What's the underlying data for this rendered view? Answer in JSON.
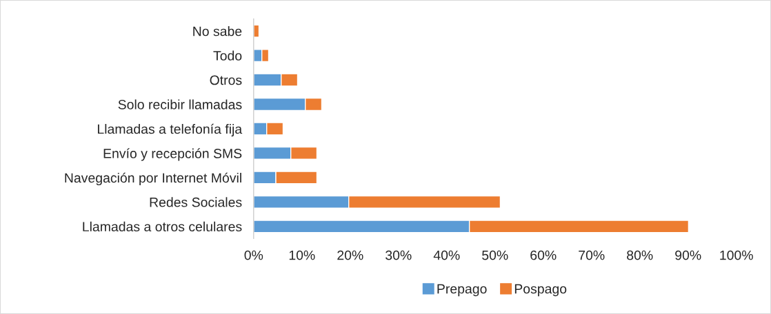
{
  "chart_data": {
    "type": "bar",
    "orientation": "horizontal",
    "stacked": true,
    "categories": [
      "No sabe",
      "Todo",
      "Otros",
      "Solo recibir llamadas",
      "Llamadas a telefonía fija",
      "Envío y recepción SMS",
      "Navegación por Internet Móvil",
      "Redes Sociales",
      "Llamadas a otros celulares"
    ],
    "series": [
      {
        "name": "Prepago",
        "color": "#5b9bd5",
        "values": [
          0,
          1.7,
          5.7,
          10.7,
          2.7,
          7.7,
          4.6,
          19.7,
          44.7
        ]
      },
      {
        "name": "Pospago",
        "color": "#ed7d31",
        "values": [
          1.1,
          1.4,
          3.4,
          3.4,
          3.4,
          5.4,
          8.5,
          31.4,
          45.4
        ]
      }
    ],
    "xlim": [
      0,
      100
    ],
    "xticks": [
      {
        "value": 0,
        "label": "0%"
      },
      {
        "value": 10,
        "label": "10%"
      },
      {
        "value": 20,
        "label": "20%"
      },
      {
        "value": 30,
        "label": "30%"
      },
      {
        "value": 40,
        "label": "40%"
      },
      {
        "value": 50,
        "label": "50%"
      },
      {
        "value": 60,
        "label": "60%"
      },
      {
        "value": 70,
        "label": "70%"
      },
      {
        "value": 80,
        "label": "80%"
      },
      {
        "value": 90,
        "label": "90%"
      },
      {
        "value": 100,
        "label": "100%"
      }
    ],
    "legend": "bottom",
    "grid": false
  }
}
